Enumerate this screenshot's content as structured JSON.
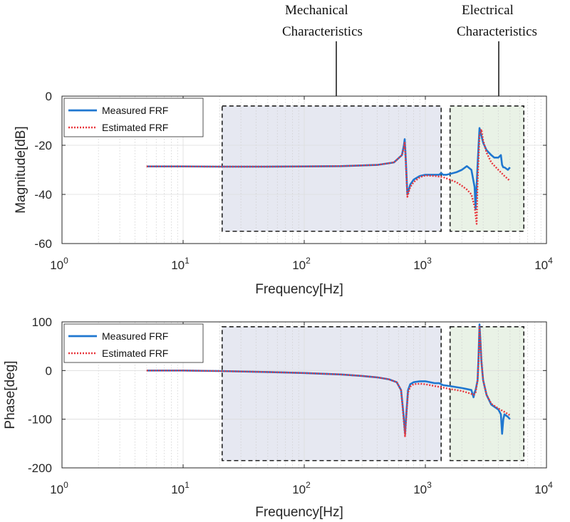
{
  "chart_data": [
    {
      "type": "line",
      "xscale": "log",
      "xlabel": "Frequency[Hz]",
      "ylabel": "Magnitude[dB]",
      "xlim": [
        1,
        10000
      ],
      "ylim": [
        -60,
        0
      ],
      "xticks": [
        {
          "value": 1,
          "base": "10",
          "exp": "0"
        },
        {
          "value": 10,
          "base": "10",
          "exp": "1"
        },
        {
          "value": 100,
          "base": "10",
          "exp": "2"
        },
        {
          "value": 1000,
          "base": "10",
          "exp": "3"
        },
        {
          "value": 10000,
          "base": "10",
          "exp": "4"
        }
      ],
      "yticks": [
        {
          "value": 0,
          "label": "0"
        },
        {
          "value": -20,
          "label": "-20"
        },
        {
          "value": -40,
          "label": "-40"
        },
        {
          "value": -60,
          "label": "-60"
        }
      ],
      "grid": true,
      "legend": {
        "position": "top-left",
        "entries": [
          "Measured FRF",
          "Estimated FRF"
        ]
      },
      "regions": [
        {
          "name": "mechanical",
          "x": [
            21,
            1350
          ],
          "y": [
            -55,
            -4
          ],
          "color": "#e6e8f1"
        },
        {
          "name": "electrical",
          "x": [
            1600,
            6500
          ],
          "y": [
            -55,
            -4
          ],
          "color": "#e9f2e6"
        }
      ],
      "series": [
        {
          "name": "Measured FRF",
          "color": "#1f77d0",
          "style": "solid",
          "x": [
            5,
            10,
            20,
            50,
            100,
            200,
            400,
            550,
            640,
            665,
            675,
            690,
            710,
            750,
            800,
            900,
            1000,
            1200,
            1300,
            1350,
            1400,
            1500,
            1800,
            2000,
            2200,
            2400,
            2550,
            2600,
            2700,
            2800,
            2900,
            3000,
            3200,
            3500,
            3700,
            4000,
            4200,
            4300,
            4400,
            4500,
            4800,
            5000
          ],
          "y": [
            -28.6,
            -28.6,
            -28.7,
            -28.7,
            -28.6,
            -28.5,
            -28,
            -27,
            -24,
            -20,
            -17.5,
            -26,
            -40,
            -36,
            -34,
            -32.5,
            -32,
            -32,
            -32,
            -31.3,
            -32,
            -32,
            -31,
            -30,
            -28.5,
            -30,
            -37,
            -46,
            -28,
            -13,
            -16,
            -19,
            -22,
            -24,
            -25,
            -25,
            -24,
            -28,
            -29,
            -29,
            -30,
            -29
          ]
        },
        {
          "name": "Estimated FRF",
          "color": "#e8353b",
          "style": "dotted",
          "x": [
            5,
            10,
            20,
            50,
            100,
            200,
            400,
            550,
            640,
            665,
            675,
            690,
            710,
            750,
            800,
            900,
            1000,
            1200,
            1400,
            1600,
            1800,
            2000,
            2200,
            2400,
            2550,
            2650,
            2700,
            2800,
            2900,
            3000,
            3200,
            3500,
            4000,
            4500,
            5000
          ],
          "y": [
            -28.6,
            -28.6,
            -28.7,
            -28.7,
            -28.6,
            -28.5,
            -28,
            -27,
            -24,
            -21,
            -19,
            -27,
            -41,
            -37,
            -35,
            -33,
            -32.3,
            -32.5,
            -33,
            -34,
            -35,
            -36.5,
            -38,
            -40,
            -45,
            -52,
            -35,
            -16,
            -13.5,
            -18,
            -23,
            -27,
            -30,
            -32.5,
            -34.5
          ]
        }
      ]
    },
    {
      "type": "line",
      "xscale": "log",
      "xlabel": "Frequency[Hz]",
      "ylabel": "Phase[deg]",
      "xlim": [
        1,
        10000
      ],
      "ylim": [
        -200,
        100
      ],
      "xticks": [
        {
          "value": 1,
          "base": "10",
          "exp": "0"
        },
        {
          "value": 10,
          "base": "10",
          "exp": "1"
        },
        {
          "value": 100,
          "base": "10",
          "exp": "2"
        },
        {
          "value": 1000,
          "base": "10",
          "exp": "3"
        },
        {
          "value": 10000,
          "base": "10",
          "exp": "4"
        }
      ],
      "yticks": [
        {
          "value": 100,
          "label": "100"
        },
        {
          "value": 0,
          "label": "0"
        },
        {
          "value": -100,
          "label": "-100"
        },
        {
          "value": -200,
          "label": "-200"
        }
      ],
      "grid": true,
      "legend": {
        "position": "top-left",
        "entries": [
          "Measured FRF",
          "Estimated FRF"
        ]
      },
      "regions": [
        {
          "name": "mechanical",
          "x": [
            21,
            1350
          ],
          "y": [
            -185,
            90
          ],
          "color": "#e6e8f1"
        },
        {
          "name": "electrical",
          "x": [
            1600,
            6500
          ],
          "y": [
            -185,
            90
          ],
          "color": "#e9f2e6"
        }
      ],
      "series": [
        {
          "name": "Measured FRF",
          "color": "#1f77d0",
          "style": "solid",
          "x": [
            5,
            10,
            20,
            50,
            100,
            200,
            300,
            400,
            500,
            580,
            630,
            660,
            680,
            700,
            720,
            750,
            800,
            900,
            1000,
            1200,
            1300,
            1350,
            1400,
            1600,
            1800,
            2000,
            2200,
            2400,
            2500,
            2550,
            2600,
            2700,
            2750,
            2800,
            2850,
            2900,
            3000,
            3200,
            3500,
            4000,
            4200,
            4300,
            4400,
            4500,
            4800,
            5000
          ],
          "y": [
            0,
            0,
            -1,
            -3,
            -5,
            -8,
            -11,
            -14,
            -18,
            -24,
            -40,
            -90,
            -130,
            -80,
            -40,
            -28,
            -24,
            -22,
            -22,
            -26,
            -26,
            -28,
            -30,
            -32,
            -34,
            -36,
            -38,
            -40,
            -55,
            -45,
            -40,
            -20,
            30,
            95,
            60,
            20,
            -20,
            -50,
            -70,
            -80,
            -90,
            -130,
            -100,
            -90,
            -95,
            -100
          ]
        },
        {
          "name": "Estimated FRF",
          "color": "#e8353b",
          "style": "dotted",
          "x": [
            5,
            10,
            20,
            50,
            100,
            200,
            300,
            400,
            500,
            580,
            630,
            660,
            680,
            700,
            720,
            750,
            800,
            900,
            1000,
            1200,
            1400,
            1600,
            1800,
            2000,
            2200,
            2400,
            2500,
            2600,
            2700,
            2750,
            2800,
            2850,
            2900,
            3000,
            3200,
            3500,
            4000,
            4500,
            5000
          ],
          "y": [
            0,
            0,
            -1,
            -3,
            -5,
            -8,
            -11,
            -14,
            -18,
            -24,
            -40,
            -95,
            -135,
            -85,
            -45,
            -33,
            -28,
            -27,
            -28,
            -32,
            -35,
            -38,
            -40,
            -42,
            -45,
            -48,
            -50,
            -45,
            -20,
            20,
            90,
            60,
            20,
            -20,
            -50,
            -68,
            -78,
            -85,
            -92
          ]
        }
      ]
    }
  ],
  "annotations": {
    "mechanical": [
      "Mechanical",
      "Characteristics"
    ],
    "electrical": [
      "Electrical",
      "Characteristics"
    ]
  }
}
